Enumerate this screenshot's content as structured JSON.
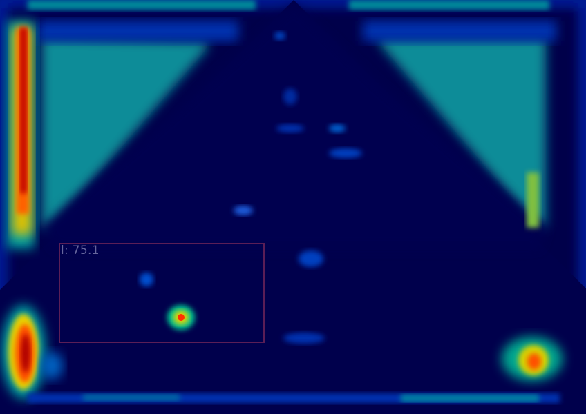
{
  "image": {
    "description_kind": "ultrasound-heatmap-overlay",
    "colormap": "jet",
    "background_color": "#000048"
  },
  "detection": {
    "label": "l: 75.1",
    "box_color": "#782a5a",
    "label_color": "#7878aa"
  }
}
